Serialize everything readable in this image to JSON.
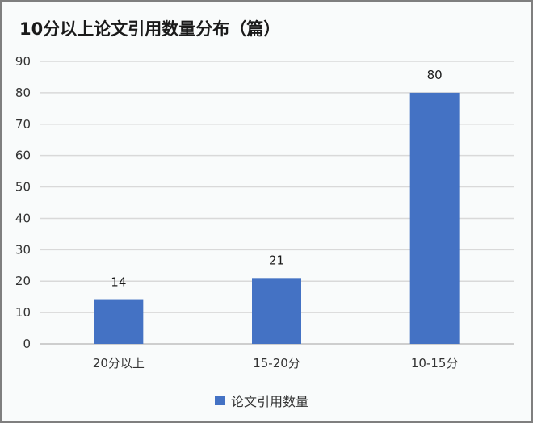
{
  "chart_data": {
    "type": "bar",
    "title": "10分以上论文引用数量分布（篇）",
    "categories": [
      "20分以上",
      "15-20分",
      "10-15分"
    ],
    "series": [
      {
        "name": "论文引用数量",
        "values": [
          14,
          21,
          80
        ]
      }
    ],
    "data_labels": [
      "14",
      "21",
      "80"
    ],
    "ylim": [
      0,
      90
    ],
    "yticks": [
      "0",
      "10",
      "20",
      "30",
      "40",
      "50",
      "60",
      "70",
      "80",
      "90"
    ],
    "grid": true,
    "legend_position": "bottom",
    "colors": {
      "bar": "#4472c4",
      "grid": "#d9d9d9",
      "axis": "#bfbfbf"
    }
  }
}
